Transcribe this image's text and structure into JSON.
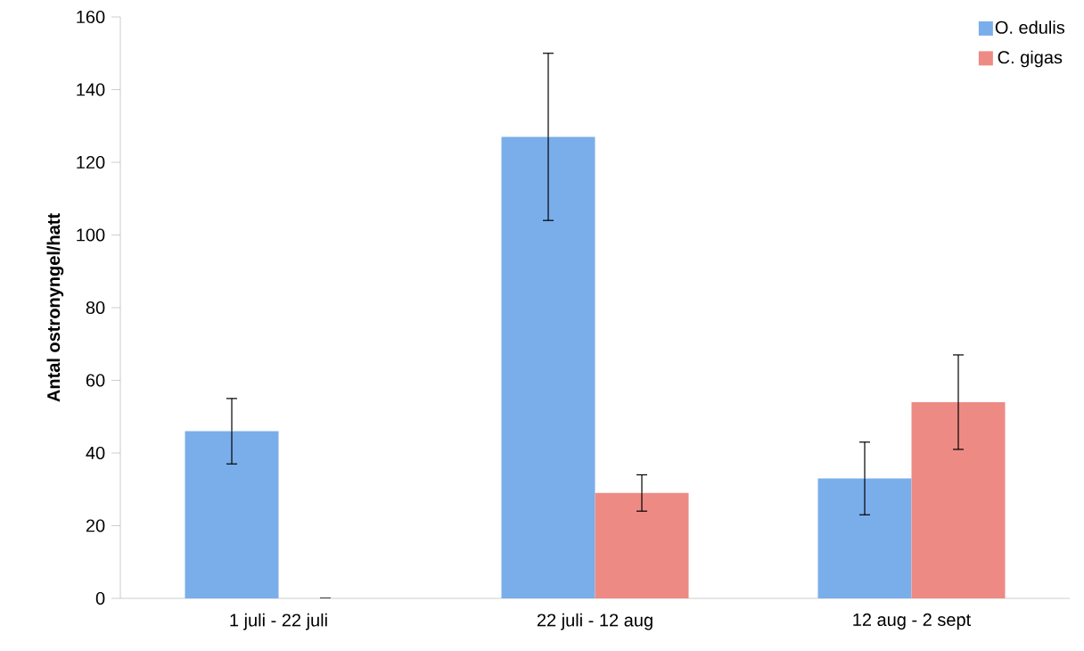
{
  "chart_data": {
    "type": "bar",
    "ylabel": "Antal ostronyngel/hatt",
    "categories": [
      "1 juli - 22 juli",
      "22 juli - 12 aug",
      "12 aug - 2 sept"
    ],
    "series": [
      {
        "name": "O. edulis",
        "color": "#7aaeea",
        "values": [
          46,
          127,
          33
        ],
        "errors": [
          9,
          23,
          10
        ]
      },
      {
        "name": "C. gigas",
        "color": "#ee8a84",
        "values": [
          0,
          29,
          54
        ],
        "errors": [
          null,
          5,
          13
        ]
      }
    ],
    "ylim": [
      0,
      160
    ],
    "yticks": [
      0,
      20,
      40,
      60,
      80,
      100,
      120,
      140,
      160
    ],
    "legend": "top right"
  }
}
